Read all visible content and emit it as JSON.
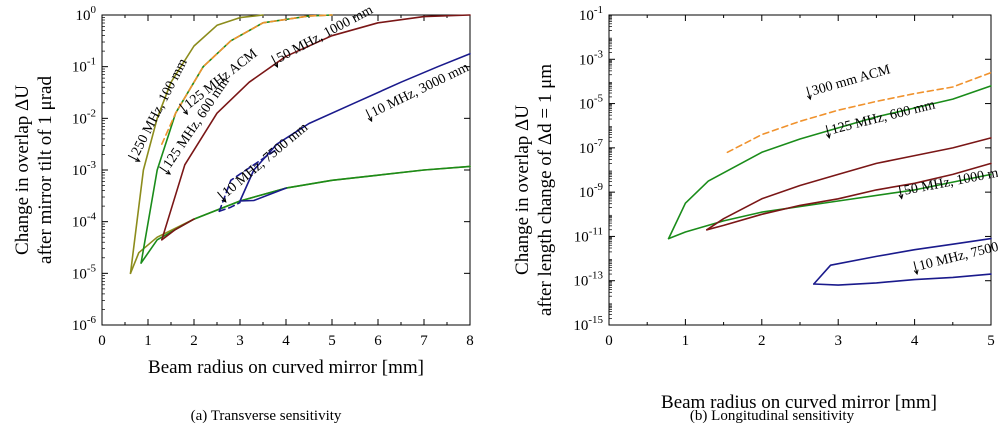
{
  "chart_data": [
    {
      "type": "line",
      "caption": "(a) Transverse sensitivity",
      "xlabel": "Beam radius on curved mirror [mm]",
      "ylabel_line1": "Change in overlap ΔU",
      "ylabel_line2": "after mirror tilt of 1 μrad",
      "xlim": [
        0,
        8
      ],
      "ylim_log10": [
        -6,
        0
      ],
      "yscale": "log",
      "grid": false,
      "x_ticks": [
        "0",
        "1",
        "2",
        "3",
        "4",
        "5",
        "6",
        "7",
        "8"
      ],
      "y_tick_exponents": [
        "0",
        "-1",
        "-2",
        "-3",
        "-4",
        "-5",
        "-6"
      ],
      "series": [
        {
          "label": "250 MHz, 100 mm",
          "color": "#8c8c1c",
          "dash": false,
          "upper": [
            [
              0.62,
              -5.0
            ],
            [
              0.9,
              -3.0
            ],
            [
              1.2,
              -2.0
            ],
            [
              1.5,
              -1.3
            ],
            [
              2.0,
              -0.6
            ],
            [
              2.5,
              -0.2
            ],
            [
              3.0,
              -0.05
            ],
            [
              3.5,
              0
            ]
          ],
          "lower": [
            [
              0.62,
              -5.0
            ],
            [
              0.8,
              -4.6
            ],
            [
              1.2,
              -4.3
            ],
            [
              2.0,
              -3.95
            ],
            [
              3.0,
              -3.6
            ],
            [
              4.0,
              -3.35
            ],
            [
              5.0,
              -3.2
            ],
            [
              6.0,
              -3.1
            ],
            [
              7.0,
              -3.0
            ],
            [
              8.0,
              -2.93
            ]
          ]
        },
        {
          "label": "125 MHz, 600 mm",
          "color": "#1a8c1a",
          "dash": false,
          "upper": [
            [
              0.85,
              -4.8
            ],
            [
              1.2,
              -3.0
            ],
            [
              1.6,
              -1.9
            ],
            [
              2.2,
              -1.0
            ],
            [
              2.8,
              -0.5
            ],
            [
              3.5,
              -0.15
            ],
            [
              4.5,
              -0.02
            ],
            [
              5.0,
              0
            ]
          ],
          "lower": [
            [
              0.85,
              -4.8
            ],
            [
              1.2,
              -4.35
            ],
            [
              2.0,
              -3.95
            ],
            [
              3.0,
              -3.6
            ],
            [
              4.0,
              -3.35
            ],
            [
              5.0,
              -3.2
            ],
            [
              6.0,
              -3.1
            ],
            [
              7.0,
              -3.0
            ],
            [
              8.0,
              -2.93
            ]
          ]
        },
        {
          "label": "125 MHz ACM",
          "color": "#f0922d",
          "dash": true,
          "upper": [
            [
              1.3,
              -2.5
            ],
            [
              1.6,
              -1.9
            ],
            [
              2.2,
              -1.0
            ],
            [
              2.8,
              -0.5
            ],
            [
              3.5,
              -0.15
            ],
            [
              4.5,
              -0.02
            ],
            [
              5.0,
              0
            ]
          ],
          "lower": []
        },
        {
          "label": "50 MHz, 1000 mm",
          "color": "#7a1616",
          "dash": false,
          "upper": [
            [
              1.3,
              -4.35
            ],
            [
              1.8,
              -2.9
            ],
            [
              2.5,
              -1.9
            ],
            [
              3.2,
              -1.3
            ],
            [
              4.0,
              -0.8
            ],
            [
              5.0,
              -0.4
            ],
            [
              6.0,
              -0.15
            ],
            [
              7.0,
              -0.03
            ],
            [
              8.0,
              0
            ]
          ],
          "lower": [
            [
              1.3,
              -4.35
            ],
            [
              1.6,
              -4.15
            ],
            [
              2.0,
              -3.95
            ]
          ]
        },
        {
          "label": "10 MHz, 3000 mm",
          "color": "#1a1a8c",
          "dash": false,
          "upper": [
            [
              3.0,
              -3.6
            ],
            [
              3.3,
              -3.0
            ],
            [
              3.8,
              -2.5
            ],
            [
              4.5,
              -2.1
            ],
            [
              5.5,
              -1.7
            ],
            [
              6.5,
              -1.3
            ],
            [
              7.3,
              -1.0
            ],
            [
              8.0,
              -0.75
            ]
          ],
          "lower": [
            [
              3.0,
              -3.6
            ],
            [
              3.3,
              -3.59
            ],
            [
              4.0,
              -3.35
            ]
          ]
        },
        {
          "label": "10 MHz, 7500 mm",
          "color": "#1a1a8c",
          "dash": true,
          "upper": [
            [
              2.55,
              -3.8
            ],
            [
              2.8,
              -3.2
            ],
            [
              3.3,
              -2.9
            ],
            [
              3.8,
              -2.6
            ]
          ],
          "lower": [
            [
              2.55,
              -3.8
            ],
            [
              2.8,
              -3.72
            ],
            [
              3.0,
              -3.63
            ]
          ]
        }
      ],
      "annotations": [
        {
          "text": "250 MHz, 100 mm",
          "x": 0.82,
          "y": -2.7,
          "angle": -63
        },
        {
          "text": "125 MHz ACM",
          "x": 1.92,
          "y": -1.8,
          "angle": -38
        },
        {
          "text": "125 MHz, 600 mm",
          "x": 1.5,
          "y": -2.95,
          "angle": -56
        },
        {
          "text": "50 MHz, 1000 mm",
          "x": 3.9,
          "y": -0.9,
          "angle": -28
        },
        {
          "text": "10 MHz, 3000 mm",
          "x": 5.95,
          "y": -1.95,
          "angle": -26
        },
        {
          "text": "10 MHz, 7500 mm",
          "x": 2.75,
          "y": -3.5,
          "angle": -40
        }
      ]
    },
    {
      "type": "line",
      "caption": "(b) Longitudinal sensitivity",
      "xlabel": "Beam radius on curved mirror [mm]",
      "ylabel_line1": "Change in overlap ΔU",
      "ylabel_line2": "after length change of Δd = 1 μm",
      "xlim": [
        0,
        5
      ],
      "ylim_log10": [
        -15,
        -1
      ],
      "yscale": "log",
      "grid": false,
      "x_ticks": [
        "0",
        "1",
        "2",
        "3",
        "4",
        "5"
      ],
      "y_tick_exponents": [
        "-1",
        "-3",
        "-5",
        "-7",
        "-9",
        "-11",
        "-13",
        "-15"
      ],
      "series": [
        {
          "label": "300 mm ACM",
          "color": "#f0922d",
          "dash": true,
          "upper": [
            [
              1.55,
              -7.2
            ],
            [
              2.0,
              -6.4
            ],
            [
              2.5,
              -5.8
            ],
            [
              3.0,
              -5.3
            ],
            [
              3.5,
              -4.9
            ],
            [
              4.0,
              -4.55
            ],
            [
              4.5,
              -4.25
            ],
            [
              5.0,
              -3.6
            ]
          ],
          "lower": []
        },
        {
          "label": "125 MHz, 600 mm",
          "color": "#1a8c1a",
          "dash": false,
          "upper": [
            [
              0.78,
              -11.1
            ],
            [
              1.0,
              -9.5
            ],
            [
              1.3,
              -8.5
            ],
            [
              2.0,
              -7.2
            ],
            [
              2.5,
              -6.6
            ],
            [
              3.0,
              -6.1
            ],
            [
              3.5,
              -5.6
            ],
            [
              4.0,
              -5.2
            ],
            [
              4.5,
              -4.8
            ],
            [
              5.0,
              -4.2
            ]
          ],
          "lower": [
            [
              0.78,
              -11.1
            ],
            [
              1.0,
              -10.8
            ],
            [
              1.5,
              -10.3
            ],
            [
              2.0,
              -9.9
            ],
            [
              3.0,
              -9.4
            ],
            [
              4.0,
              -8.9
            ],
            [
              5.0,
              -8.2
            ]
          ]
        },
        {
          "label": "50 MHz, 1000 mm",
          "color": "#7a1616",
          "dash": false,
          "upper": [
            [
              1.28,
              -10.7
            ],
            [
              1.5,
              -10.2
            ],
            [
              2.0,
              -9.3
            ],
            [
              2.5,
              -8.7
            ],
            [
              3.0,
              -8.2
            ],
            [
              3.5,
              -7.7
            ],
            [
              4.0,
              -7.35
            ],
            [
              4.5,
              -7.0
            ],
            [
              5.0,
              -6.55
            ]
          ],
          "lower": [
            [
              1.28,
              -10.7
            ],
            [
              1.5,
              -10.5
            ],
            [
              2.0,
              -10.0
            ],
            [
              2.5,
              -9.6
            ],
            [
              3.0,
              -9.3
            ],
            [
              3.5,
              -8.9
            ],
            [
              4.0,
              -8.6
            ],
            [
              4.5,
              -8.2
            ],
            [
              5.0,
              -7.7
            ]
          ]
        },
        {
          "label": "10 MHz, 7500 mm",
          "color": "#1a1a8c",
          "dash": false,
          "upper": [
            [
              2.68,
              -13.15
            ],
            [
              2.9,
              -12.3
            ],
            [
              3.5,
              -11.9
            ],
            [
              4.0,
              -11.6
            ],
            [
              4.5,
              -11.35
            ],
            [
              5.0,
              -11.1
            ]
          ],
          "lower": [
            [
              2.68,
              -13.15
            ],
            [
              3.0,
              -13.2
            ],
            [
              3.5,
              -13.1
            ],
            [
              4.0,
              -12.95
            ],
            [
              4.5,
              -12.85
            ],
            [
              5.0,
              -12.7
            ]
          ]
        }
      ],
      "annotations": [
        {
          "text": "300 mm ACM",
          "x": 2.7,
          "y": -4.6,
          "angle": -16
        },
        {
          "text": "125 MHz, 600 mm",
          "x": 2.95,
          "y": -6.35,
          "angle": -14
        },
        {
          "text": "50 MHz, 1000 mm",
          "x": 3.9,
          "y": -9.1,
          "angle": -11
        },
        {
          "text": "10 MHz, 7500 mm",
          "x": 4.1,
          "y": -12.5,
          "angle": -14
        }
      ]
    }
  ]
}
